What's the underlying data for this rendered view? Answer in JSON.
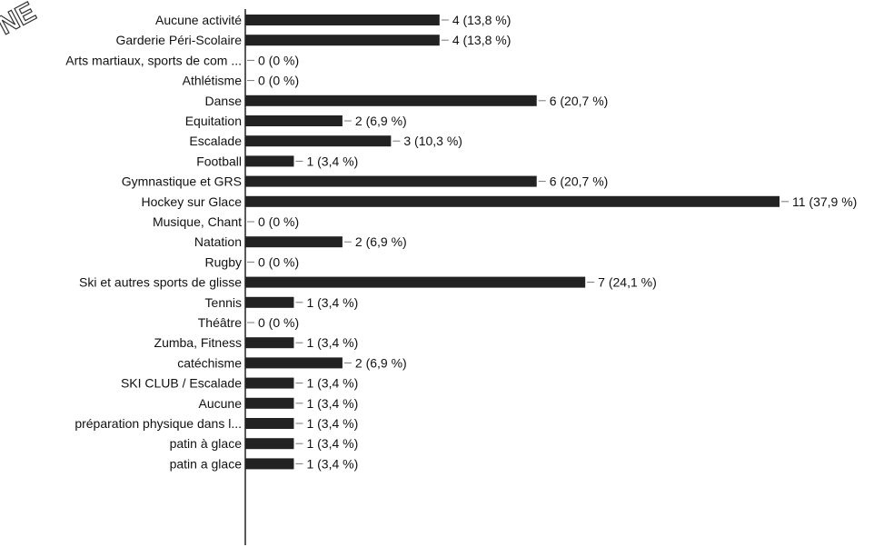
{
  "watermark": "NE",
  "chart_data": {
    "type": "bar",
    "orientation": "horizontal",
    "categories": [
      "Aucune activité",
      "Garderie Péri-Scolaire",
      "Arts martiaux, sports de com ...",
      "Athlétisme",
      "Danse",
      "Equitation",
      "Escalade",
      "Football",
      "Gymnastique et GRS",
      "Hockey sur Glace",
      "Musique, Chant",
      "Natation",
      "Rugby",
      "Ski et autres sports de glisse",
      "Tennis",
      "Théâtre",
      "Zumba, Fitness",
      "catéchisme",
      "SKI CLUB / Escalade",
      "Aucune",
      "préparation physique dans l...",
      "patin à glace",
      "patin a glace"
    ],
    "values": [
      4,
      4,
      0,
      0,
      6,
      2,
      3,
      1,
      6,
      11,
      0,
      2,
      0,
      7,
      1,
      0,
      1,
      2,
      1,
      1,
      1,
      1,
      1
    ],
    "labels": [
      "4 (13,8 %)",
      "4 (13,8 %)",
      "0 (0 %)",
      "0 (0 %)",
      "6 (20,7 %)",
      "2 (6,9 %)",
      "3 (10,3 %)",
      "1 (3,4 %)",
      "6 (20,7 %)",
      "11 (37,9 %)",
      "0 (0 %)",
      "2 (6,9 %)",
      "0 (0 %)",
      "7 (24,1 %)",
      "1 (3,4 %)",
      "0 (0 %)",
      "1 (3,4 %)",
      "2 (6,9 %)",
      "1 (3,4 %)",
      "1 (3,4 %)",
      "1 (3,4 %)",
      "1 (3,4 %)",
      "1 (3,4 %)"
    ],
    "bar_color": "#222222",
    "xlim": [
      0,
      11
    ],
    "grid": false,
    "legend": "none"
  }
}
